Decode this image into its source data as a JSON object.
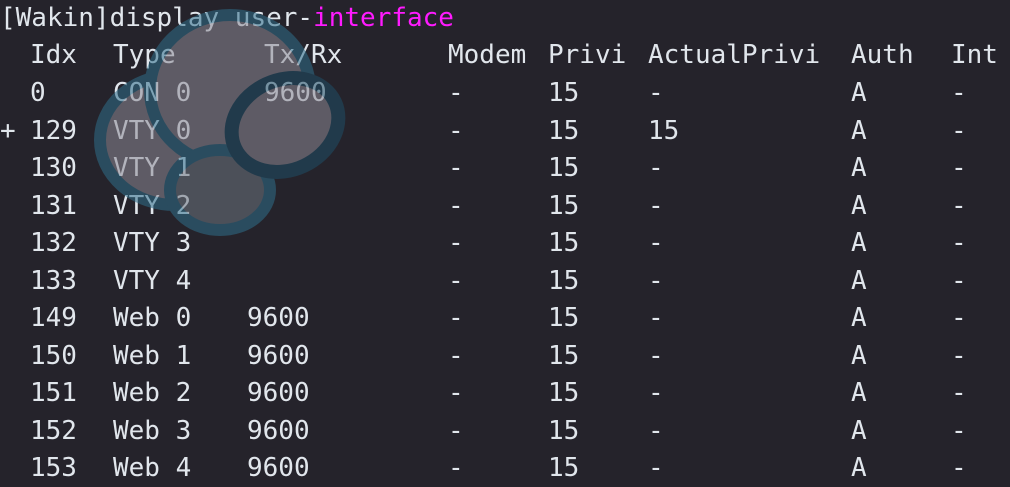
{
  "terminal": {
    "prompt": "[Wakin]",
    "command_plain": "display user-",
    "command_highlight": "interface",
    "highlight_color": "#ff1aff",
    "background_color": "#25232b",
    "headers": [
      "Idx",
      "Type",
      "Tx/Rx",
      "Modem",
      "Privi",
      "ActualPrivi",
      "Auth",
      "Int"
    ],
    "rows": [
      {
        "mark": "",
        "idx": "0",
        "type": "CON 0",
        "txrx": "9600",
        "modem": "-",
        "privi": "15",
        "actual": "-",
        "auth": "A",
        "int": "-"
      },
      {
        "mark": "+",
        "idx": "129",
        "type": "VTY 0",
        "txrx": "",
        "modem": "-",
        "privi": "15",
        "actual": "15",
        "auth": "A",
        "int": "-"
      },
      {
        "mark": "",
        "idx": "130",
        "type": "VTY 1",
        "txrx": "",
        "modem": "-",
        "privi": "15",
        "actual": "-",
        "auth": "A",
        "int": "-"
      },
      {
        "mark": "",
        "idx": "131",
        "type": "VTY 2",
        "txrx": "",
        "modem": "-",
        "privi": "15",
        "actual": "-",
        "auth": "A",
        "int": "-"
      },
      {
        "mark": "",
        "idx": "132",
        "type": "VTY 3",
        "txrx": "",
        "modem": "-",
        "privi": "15",
        "actual": "-",
        "auth": "A",
        "int": "-"
      },
      {
        "mark": "",
        "idx": "133",
        "type": "VTY 4",
        "txrx": "",
        "modem": "-",
        "privi": "15",
        "actual": "-",
        "auth": "A",
        "int": "-"
      },
      {
        "mark": "",
        "idx": "149",
        "type": "Web 0",
        "txrx": "9600",
        "modem": "-",
        "privi": "15",
        "actual": "-",
        "auth": "A",
        "int": "-"
      },
      {
        "mark": "",
        "idx": "150",
        "type": "Web 1",
        "txrx": "9600",
        "modem": "-",
        "privi": "15",
        "actual": "-",
        "auth": "A",
        "int": "-"
      },
      {
        "mark": "",
        "idx": "151",
        "type": "Web 2",
        "txrx": "9600",
        "modem": "-",
        "privi": "15",
        "actual": "-",
        "auth": "A",
        "int": "-"
      },
      {
        "mark": "",
        "idx": "152",
        "type": "Web 3",
        "txrx": "9600",
        "modem": "-",
        "privi": "15",
        "actual": "-",
        "auth": "A",
        "int": "-"
      },
      {
        "mark": "",
        "idx": "153",
        "type": "Web 4",
        "txrx": "9600",
        "modem": "-",
        "privi": "15",
        "actual": "-",
        "auth": "A",
        "int": "-"
      }
    ]
  },
  "watermark": {
    "icon": "cloud-blob-watermark"
  }
}
